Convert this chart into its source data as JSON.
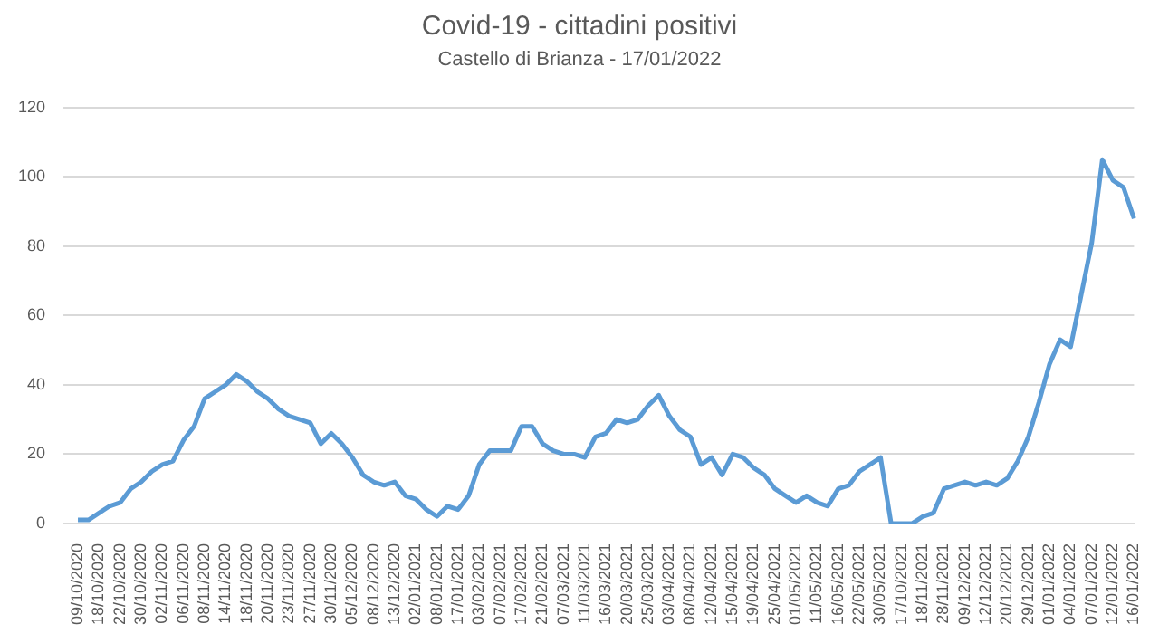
{
  "chart_data": {
    "type": "line",
    "title": "Covid-19 - cittadini positivi",
    "subtitle": "Castello di Brianza - 17/01/2022",
    "categories": [
      "09/10/2020",
      null,
      "18/10/2020",
      null,
      "22/10/2020",
      null,
      "30/10/2020",
      null,
      "02/11/2020",
      null,
      "06/11/2020",
      null,
      "08/11/2020",
      null,
      "14/11/2020",
      null,
      "18/11/2020",
      null,
      "20/11/2020",
      null,
      "23/11/2020",
      null,
      "27/11/2020",
      null,
      "30/11/2020",
      null,
      "05/12/2020",
      null,
      "08/12/2020",
      null,
      "13/12/2020",
      null,
      "02/01/2021",
      null,
      "08/01/2021",
      null,
      "17/01/2021",
      null,
      "03/02/2021",
      null,
      "07/02/2021",
      null,
      "17/02/2021",
      null,
      "21/02/2021",
      null,
      "07/03/2021",
      null,
      "11/03/2021",
      null,
      "16/03/2021",
      null,
      "20/03/2021",
      null,
      "25/03/2021",
      null,
      "03/04/2021",
      null,
      "08/04/2021",
      null,
      "12/04/2021",
      null,
      "15/04/2021",
      null,
      "19/04/2021",
      null,
      "25/04/2021",
      null,
      "01/05/2021",
      null,
      "11/05/2021",
      null,
      "16/05/2021",
      null,
      "22/05/2021",
      null,
      "30/05/2021",
      null,
      "17/10/2021",
      null,
      "18/11/2021",
      null,
      "28/11/2021",
      null,
      "09/12/2021",
      null,
      "12/12/2021",
      null,
      "20/12/2021",
      null,
      "29/12/2021",
      null,
      "01/01/2022",
      null,
      "04/01/2022",
      null,
      "07/01/2022",
      null,
      "12/01/2022",
      null,
      "16/01/2022"
    ],
    "series": [
      {
        "color": "#5b9bd5",
        "values": [
          1,
          1,
          3,
          5,
          6,
          10,
          12,
          15,
          17,
          18,
          24,
          28,
          36,
          38,
          40,
          43,
          41,
          38,
          36,
          33,
          31,
          30,
          29,
          23,
          26,
          23,
          19,
          14,
          12,
          11,
          12,
          8,
          7,
          4,
          2,
          5,
          4,
          8,
          17,
          21,
          21,
          21,
          28,
          28,
          23,
          21,
          20,
          20,
          19,
          25,
          26,
          30,
          29,
          30,
          34,
          37,
          31,
          27,
          25,
          17,
          19,
          14,
          20,
          19,
          16,
          14,
          10,
          8,
          6,
          8,
          6,
          5,
          10,
          11,
          15,
          17,
          19,
          0,
          0,
          0,
          2,
          3,
          10,
          11,
          12,
          11,
          12,
          11,
          13,
          18,
          25,
          35,
          46,
          53,
          51,
          66,
          81,
          105,
          99,
          97,
          88
        ]
      }
    ],
    "ylim": [
      0,
      120
    ],
    "yticks": [
      0,
      20,
      40,
      60,
      80,
      100,
      120
    ],
    "grid": "y",
    "legend": false,
    "marker": "none",
    "line_style": "solid"
  }
}
